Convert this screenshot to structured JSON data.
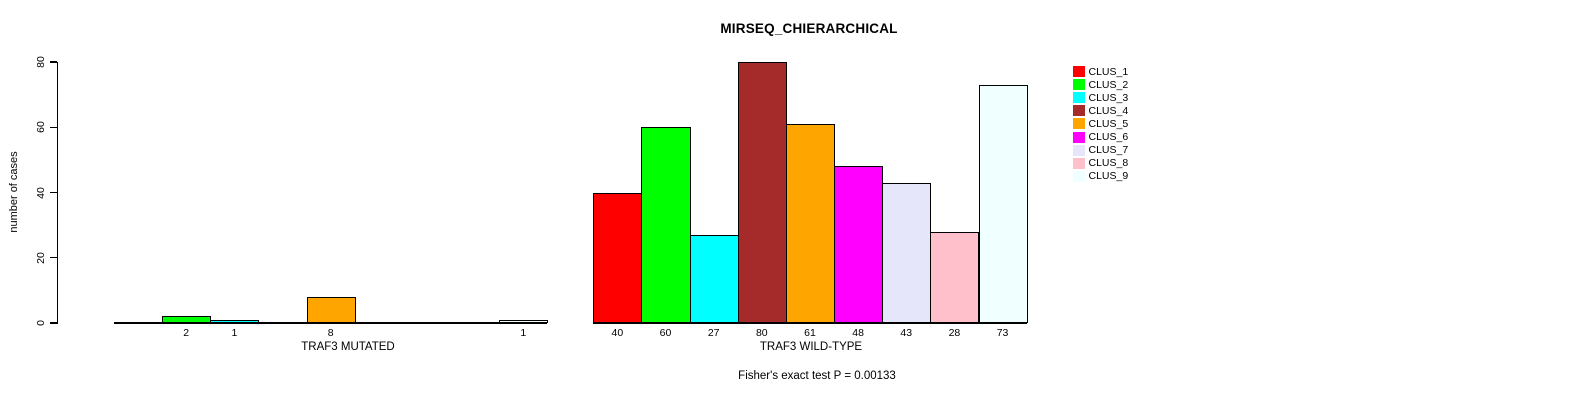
{
  "chart_data": {
    "type": "bar",
    "title": "MIRSEQ_CHIERARCHICAL",
    "ylabel": "number of cases",
    "ylim": [
      0,
      80
    ],
    "yticks": [
      0,
      20,
      40,
      60,
      80
    ],
    "categories": [
      "CLUS_1",
      "CLUS_2",
      "CLUS_3",
      "CLUS_4",
      "CLUS_5",
      "CLUS_6",
      "CLUS_7",
      "CLUS_8",
      "CLUS_9"
    ],
    "bar_colors": [
      "#FF0000",
      "#00FF00",
      "#00FFFF",
      "#A52A2A",
      "#FFA500",
      "#FF00FF",
      "#E6E6FA",
      "#FFC0CB",
      "#F0FFFF"
    ],
    "groups": [
      {
        "label": "TRAF3 MUTATED",
        "values": [
          0,
          2,
          1,
          0,
          8,
          0,
          0,
          0,
          1
        ]
      },
      {
        "label": "TRAF3 WILD-TYPE",
        "values": [
          40,
          60,
          27,
          80,
          61,
          48,
          43,
          28,
          73
        ]
      }
    ],
    "annotation": "Fisher's exact test P = 0.00133",
    "legend_position": "right",
    "grid": "off",
    "text_color": "#000000",
    "background_color": "#FFFFFF"
  }
}
